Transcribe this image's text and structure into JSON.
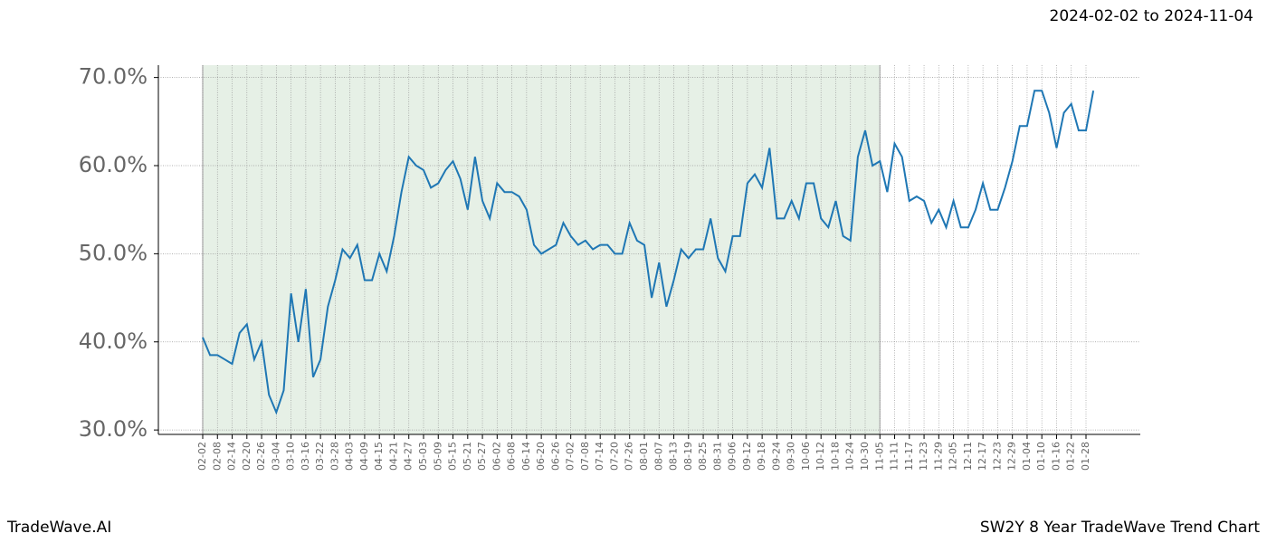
{
  "chart_data": {
    "type": "line",
    "date_range": "2024-02-02 to 2024-11-04",
    "footer_left": "TradeWave.AI",
    "footer_right": "SW2Y 8 Year TradeWave Trend Chart",
    "categories": [
      "02-02",
      null,
      "02-08",
      null,
      "02-14",
      null,
      "02-20",
      null,
      "02-26",
      null,
      "03-04",
      null,
      "03-10",
      null,
      "03-16",
      null,
      "03-22",
      null,
      "03-28",
      null,
      "04-03",
      null,
      "04-09",
      null,
      "04-15",
      null,
      "04-21",
      null,
      "04-27",
      null,
      "05-03",
      null,
      "05-09",
      null,
      "05-15",
      null,
      "05-21",
      null,
      "05-27",
      null,
      "06-02",
      null,
      "06-08",
      null,
      "06-14",
      null,
      "06-20",
      null,
      "06-26",
      null,
      "07-02",
      null,
      "07-08",
      null,
      "07-14",
      null,
      "07-20",
      null,
      "07-26",
      null,
      "08-01",
      null,
      "08-07",
      null,
      "08-13",
      null,
      "08-19",
      null,
      "08-25",
      null,
      "08-31",
      null,
      "09-06",
      null,
      "09-12",
      null,
      "09-18",
      null,
      "09-24",
      null,
      "09-30",
      null,
      "10-06",
      null,
      "10-12",
      null,
      "10-18",
      null,
      "10-24",
      null,
      "10-30",
      null,
      "11-05",
      null,
      "11-11",
      null,
      "11-17",
      null,
      "11-23",
      null,
      "11-29",
      null,
      "12-05",
      null,
      "12-11",
      null,
      "12-17",
      null,
      "12-23",
      null,
      "12-29",
      null,
      "01-04",
      null,
      "01-10",
      null,
      "01-16",
      null,
      "01-22",
      null,
      "01-28",
      null
    ],
    "series": [
      {
        "color": "#1f77b4",
        "values": [
          40.5,
          38.5,
          38.5,
          38,
          37.5,
          41,
          42,
          38,
          40,
          34,
          32,
          34.5,
          45.5,
          40,
          46,
          36,
          38,
          44,
          47,
          50.5,
          49.5,
          51,
          47,
          47,
          50,
          48,
          52,
          57,
          61,
          60,
          59.5,
          57.5,
          58,
          59.5,
          60.5,
          58.5,
          55,
          61,
          56,
          54,
          58,
          57,
          57,
          56.5,
          55,
          51,
          50,
          50.5,
          51,
          53.5,
          52,
          51,
          51.5,
          50.5,
          51,
          51,
          50,
          50,
          53.5,
          51.5,
          51,
          45,
          49,
          44,
          47,
          50.5,
          49.5,
          50.5,
          50.5,
          54,
          49.5,
          48,
          52,
          52,
          58,
          59,
          57.5,
          62,
          54,
          54,
          56,
          54,
          58,
          58,
          54,
          53,
          56,
          52,
          51.5,
          61,
          64,
          60,
          60.5,
          57,
          62.5,
          61,
          56,
          56.5,
          56,
          53.5,
          55,
          53,
          56,
          53,
          53,
          55,
          58,
          55,
          55,
          57.5,
          60.5,
          64.5,
          64.5,
          68.5,
          68.5,
          66,
          62,
          66,
          67,
          64,
          64,
          68.5
        ]
      }
    ],
    "ylim": [
      29.5,
      71.4
    ],
    "yticks": [
      {
        "value": 30,
        "label": "30.0%"
      },
      {
        "value": 40,
        "label": "40.0%"
      },
      {
        "value": 50,
        "label": "50.0%"
      },
      {
        "value": 60,
        "label": "60.0%"
      },
      {
        "value": 70,
        "label": "70.0%"
      }
    ],
    "grid": true,
    "highlight": {
      "from": "02-02",
      "to": "11-05",
      "color": "#e6f0e6"
    }
  }
}
